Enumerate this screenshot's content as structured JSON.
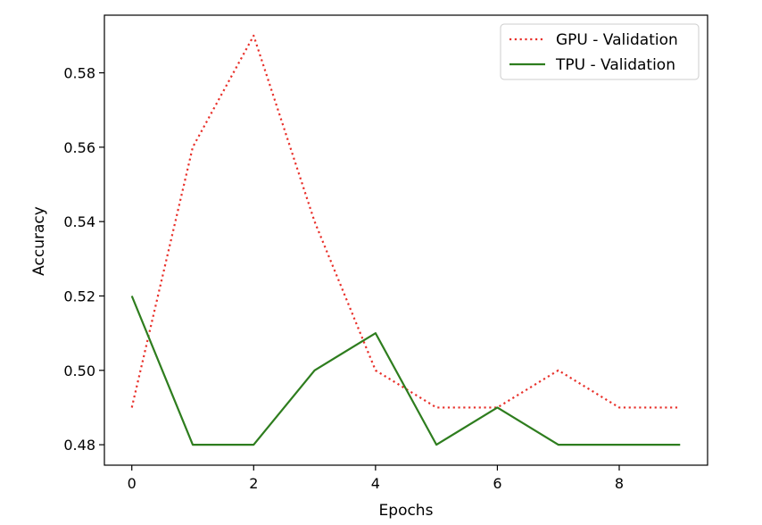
{
  "chart_data": {
    "type": "line",
    "title": "",
    "xlabel": "Epochs",
    "ylabel": "Accuracy",
    "xlim": [
      -0.45,
      9.45
    ],
    "ylim": [
      0.4745,
      0.5955
    ],
    "x": [
      0,
      1,
      2,
      3,
      4,
      5,
      6,
      7,
      8,
      9
    ],
    "xticks": [
      0,
      2,
      4,
      6,
      8
    ],
    "xtick_labels": [
      "0",
      "2",
      "4",
      "6",
      "8"
    ],
    "yticks": [
      0.48,
      0.5,
      0.52,
      0.54,
      0.56,
      0.58
    ],
    "ytick_labels": [
      "0.48",
      "0.50",
      "0.52",
      "0.54",
      "0.56",
      "0.58"
    ],
    "grid": false,
    "legend_position": "top-right",
    "series": [
      {
        "name": "GPU - Validation",
        "color": "#e8302a",
        "line_style": "dotted",
        "values": [
          0.49,
          0.56,
          0.59,
          0.54,
          0.5,
          0.49,
          0.49,
          0.5,
          0.49,
          0.49
        ]
      },
      {
        "name": "TPU - Validation",
        "color": "#2e7d1e",
        "line_style": "solid",
        "values": [
          0.52,
          0.48,
          0.48,
          0.5,
          0.51,
          0.48,
          0.49,
          0.48,
          0.48,
          0.48
        ]
      }
    ]
  }
}
